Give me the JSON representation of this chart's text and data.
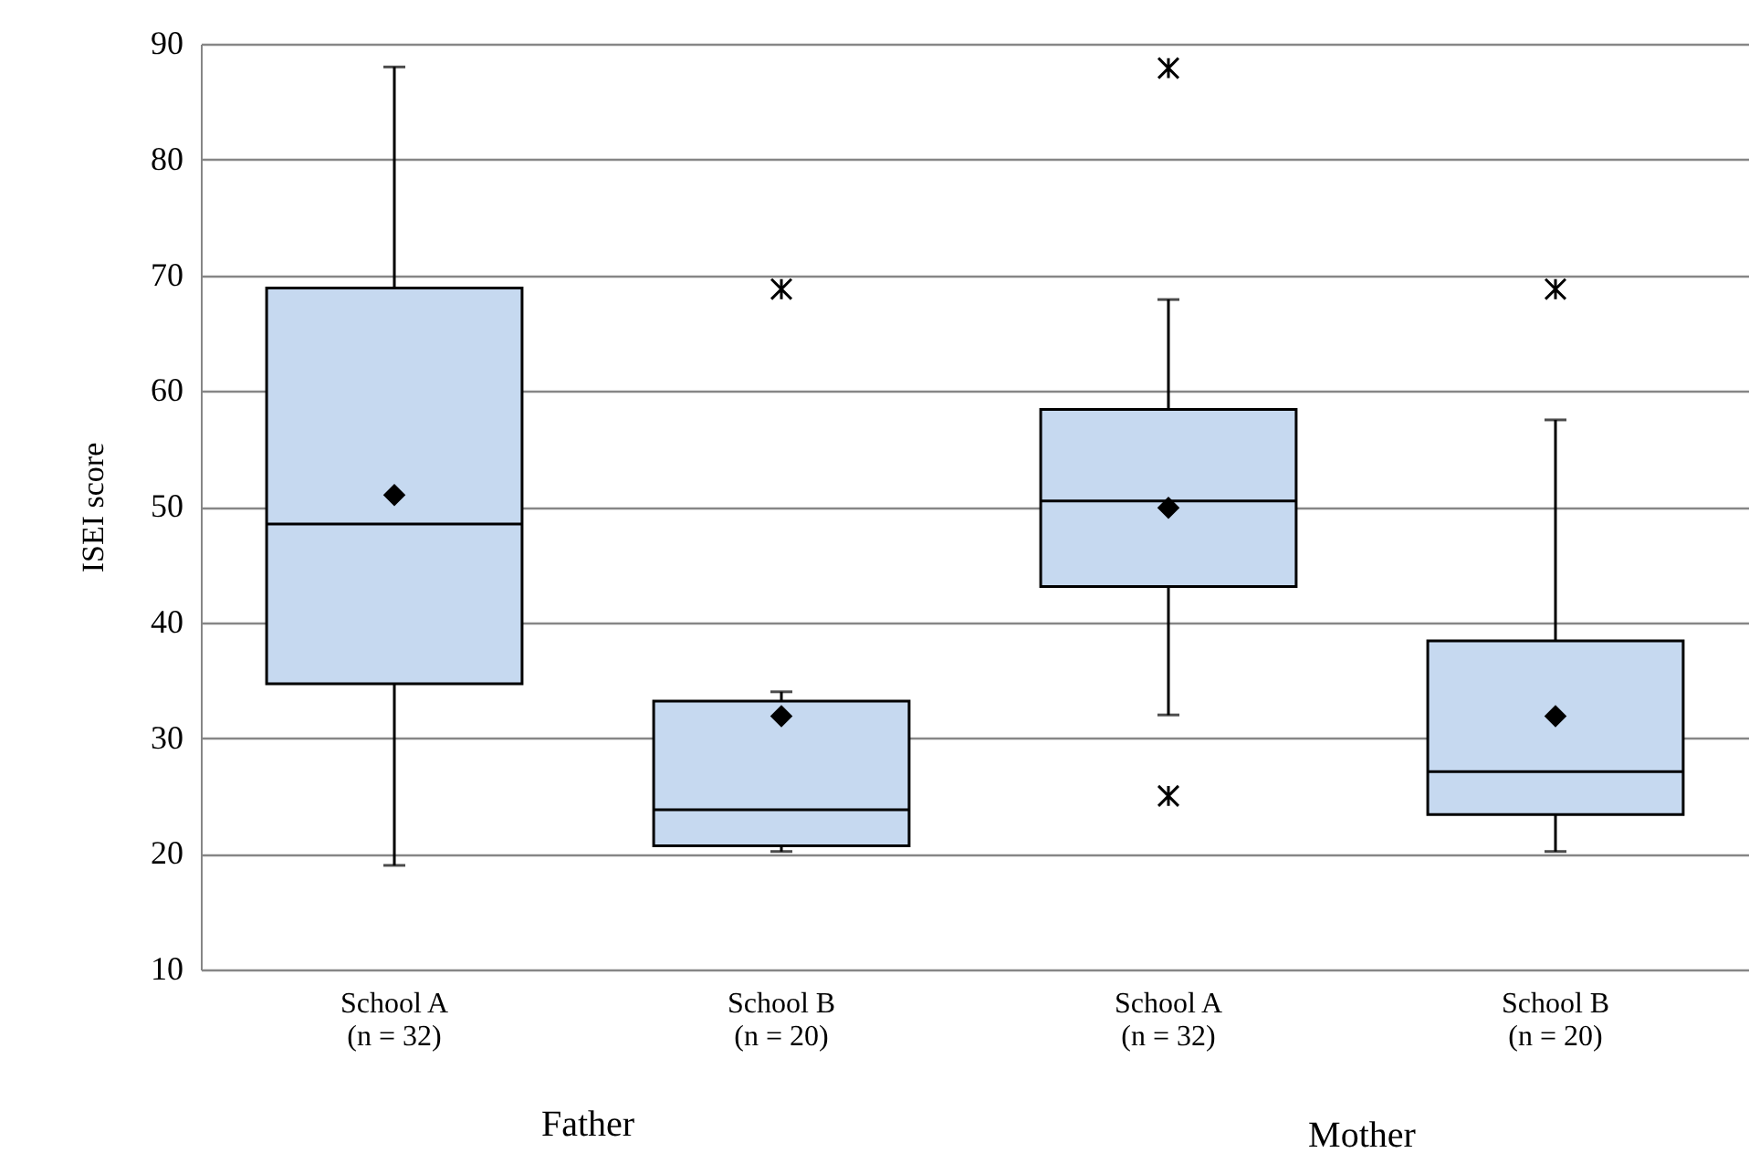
{
  "chart_data": {
    "type": "box",
    "ylabel": "ISEI  score",
    "categories": [
      "School A\n(n = 32)",
      "School B\n(n = 20)",
      "School A\n(n = 32)",
      "School B\n(n = 20)"
    ],
    "boxes": [
      {
        "low": 19,
        "q1": 34.7,
        "median": 48.5,
        "q3": 68.9,
        "high": 88,
        "mean": 51
      },
      {
        "low": 20.2,
        "q1": 20.7,
        "median": 23.8,
        "q3": 33.2,
        "high": 34,
        "mean": 31.9,
        "outliers": [
          68.8
        ]
      },
      {
        "low": 32,
        "q1": 43.1,
        "median": 50.5,
        "q3": 58.4,
        "high": 67.9,
        "mean": 49.9,
        "outliers": [
          87.9,
          25
        ]
      },
      {
        "low": 20.2,
        "q1": 23.4,
        "median": 27.1,
        "q3": 38.4,
        "high": 57.5,
        "mean": 31.9,
        "outliers": [
          68.8
        ]
      }
    ],
    "color": "#c6d9f0",
    "ylim": [
      10,
      90
    ],
    "yticks": [
      10,
      20,
      30,
      40,
      50,
      60,
      70,
      80,
      90
    ],
    "grid": "y",
    "annotations": [
      "Father",
      "Mother"
    ]
  }
}
